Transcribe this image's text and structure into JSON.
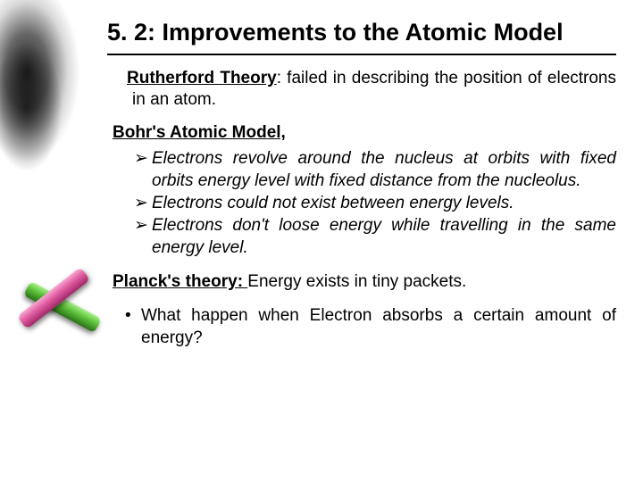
{
  "title": "5. 2: Improvements to  the Atomic Model",
  "rutherford": {
    "label": "Rutherford Theory",
    "text": ": failed in describing the position of electrons in an atom."
  },
  "bohr": {
    "heading": "Bohr's Atomic Model,",
    "bullets": [
      "Electrons revolve around the nucleus at orbits with fixed orbits energy level with fixed distance from the nucleolus.",
      "Electrons could not exist between energy levels.",
      "Electrons don't loose energy while travelling in the same energy level."
    ]
  },
  "planck": {
    "label": "Planck's theory: ",
    "text": "  Energy exists in tiny packets."
  },
  "question": "What happen when Electron absorbs a certain amount of energy?",
  "colors": {
    "text": "#000000",
    "background": "#ffffff",
    "chalk_pink": "#e05aa0",
    "chalk_green": "#5ac038"
  }
}
